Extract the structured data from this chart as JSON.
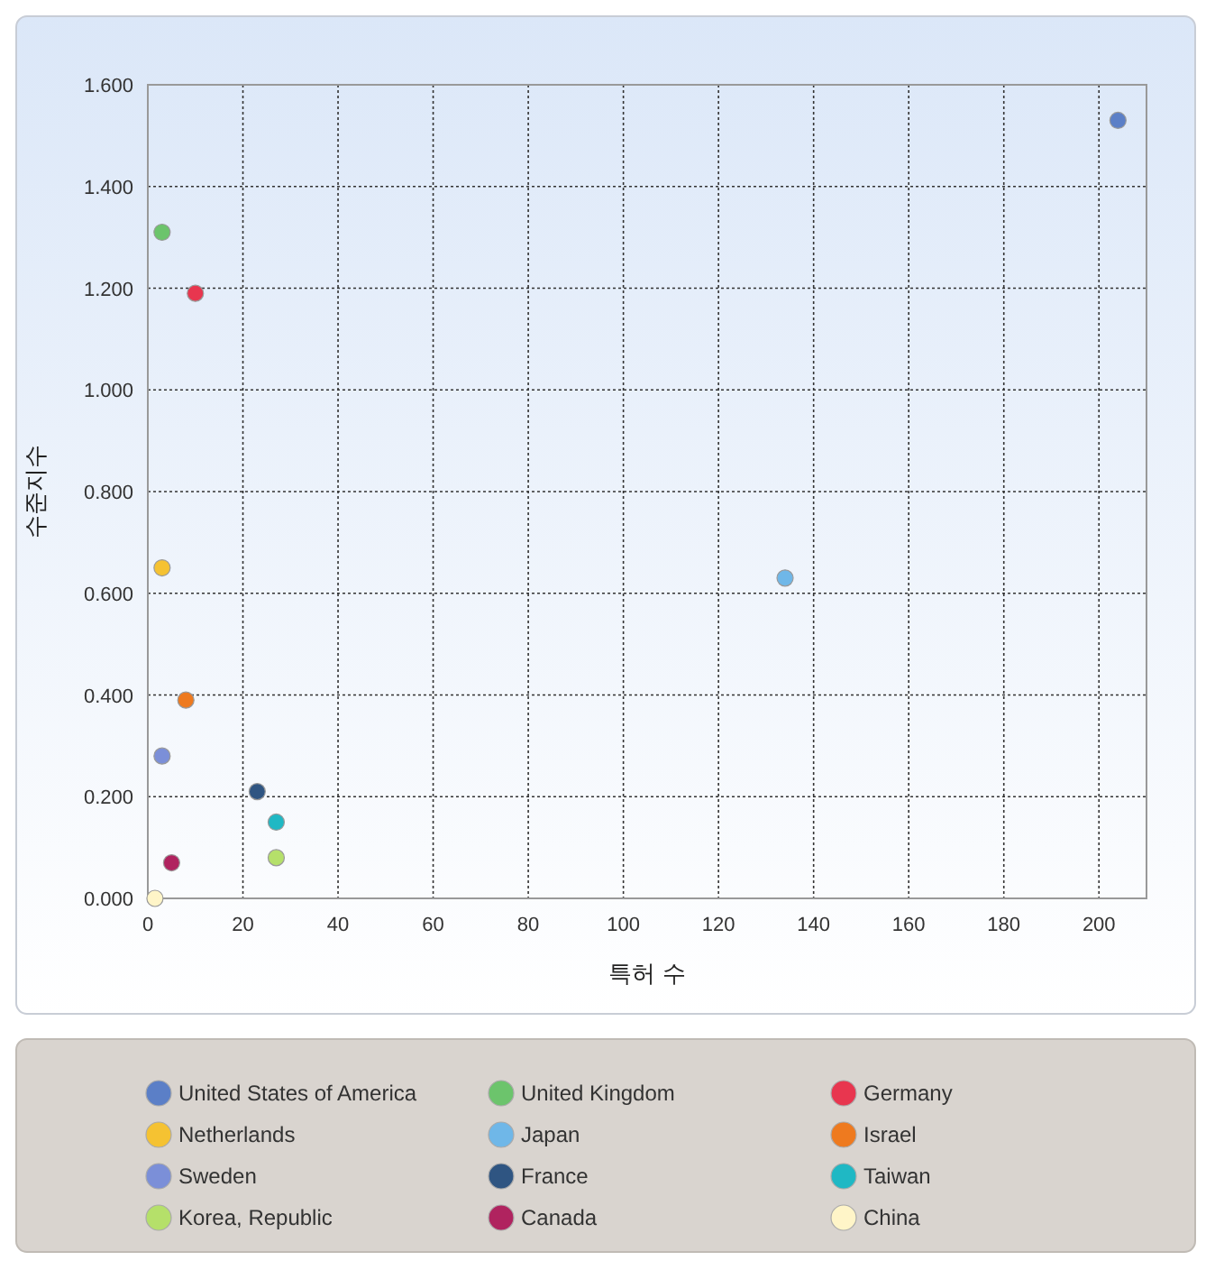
{
  "chart_data": {
    "type": "scatter",
    "xlabel": "특허 수",
    "ylabel": "수준지수",
    "xlim": [
      0,
      210
    ],
    "xticks": [
      0,
      20,
      40,
      60,
      80,
      100,
      120,
      140,
      160,
      180,
      200
    ],
    "ylim": [
      0,
      1.6
    ],
    "yticks": [
      {
        "value": 0,
        "label": "0.000"
      },
      {
        "value": 0.2,
        "label": "0.200"
      },
      {
        "value": 0.4,
        "label": "0.400"
      },
      {
        "value": 0.6,
        "label": "0.600"
      },
      {
        "value": 0.8,
        "label": "0.800"
      },
      {
        "value": 1,
        "label": "1.000"
      },
      {
        "value": 1.2,
        "label": "1.200"
      },
      {
        "value": 1.4,
        "label": "1.400"
      },
      {
        "value": 1.6,
        "label": "1.600"
      }
    ],
    "grid": true,
    "legend": "bottom",
    "marker": "circle",
    "series": [
      {
        "name": "United States of America",
        "color": "#5b7fc7",
        "x": [
          204
        ],
        "values": [
          1.53
        ]
      },
      {
        "name": "United Kingdom",
        "color": "#6cc46c",
        "x": [
          3
        ],
        "values": [
          1.31
        ]
      },
      {
        "name": "Germany",
        "color": "#e8364f",
        "x": [
          10
        ],
        "values": [
          1.19
        ]
      },
      {
        "name": "Netherlands",
        "color": "#f5c232",
        "x": [
          3
        ],
        "values": [
          0.65
        ]
      },
      {
        "name": "Japan",
        "color": "#6fb7e8",
        "x": [
          134
        ],
        "values": [
          0.63
        ]
      },
      {
        "name": "Israel",
        "color": "#ee7a1f",
        "x": [
          8
        ],
        "values": [
          0.39
        ]
      },
      {
        "name": "Sweden",
        "color": "#7b8fd8",
        "x": [
          3
        ],
        "values": [
          0.28
        ]
      },
      {
        "name": "France",
        "color": "#2f5582",
        "x": [
          23
        ],
        "values": [
          0.21
        ]
      },
      {
        "name": "Taiwan",
        "color": "#1fb8c4",
        "x": [
          27
        ],
        "values": [
          0.15
        ]
      },
      {
        "name": "Korea, Republic",
        "color": "#b5e06a",
        "x": [
          27
        ],
        "values": [
          0.08
        ]
      },
      {
        "name": "Canada",
        "color": "#b0235f",
        "x": [
          5
        ],
        "values": [
          0.07
        ]
      },
      {
        "name": "China",
        "color": "#fff5c8",
        "x": [
          1.5
        ],
        "values": [
          0
        ]
      }
    ]
  }
}
